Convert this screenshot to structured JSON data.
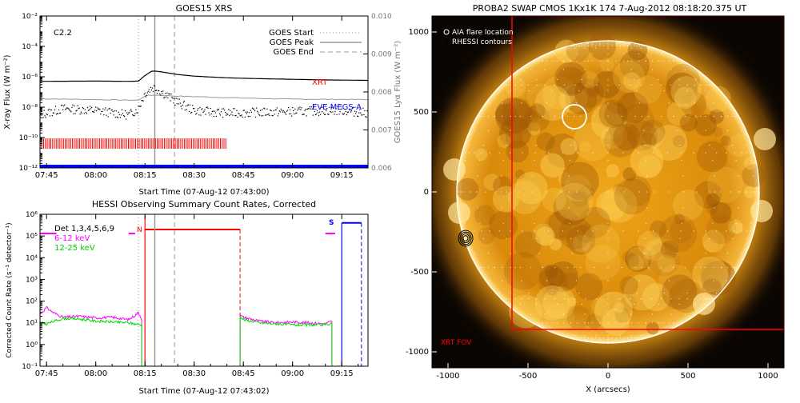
{
  "chart_data": [
    {
      "type": "line",
      "title": "GOES15 XRS",
      "xlabel": "Start Time (07-Aug-12 07:43:00)",
      "ylabel": "X-ray Flux (W m⁻²)",
      "y2label": "GOES15 Lyα Flux (W m⁻²)",
      "xlim": [
        "07:43",
        "09:23"
      ],
      "xticks": [
        "07:45",
        "08:00",
        "08:15",
        "08:30",
        "08:45",
        "09:00",
        "09:15"
      ],
      "ylim": [
        1e-12,
        0.01
      ],
      "y_scale": "log",
      "yticks": [
        "10⁻¹²",
        "10⁻¹⁰",
        "10⁻⁸",
        "10⁻⁶",
        "10⁻⁴",
        "10⁻²"
      ],
      "y2lim": [
        0.006,
        0.01
      ],
      "y2ticks": [
        "0.006",
        "0.007",
        "0.008",
        "0.009",
        "0.010"
      ],
      "class_label": "C2.2",
      "legend": [
        "GOES Start",
        "GOES Peak",
        "GOES End"
      ],
      "legend_position": "top-right",
      "markers": {
        "start": "08:13",
        "peak": "08:18",
        "end": "08:24"
      },
      "annotations": [
        {
          "text": "XRT",
          "color": "#ff0000"
        },
        {
          "text": "EVE MEGS-A",
          "color": "#0000ff"
        }
      ],
      "series": [
        {
          "name": "XRT",
          "color": "#ff0000",
          "coverage": [
            [
              "07:43",
              "08:40"
            ]
          ]
        },
        {
          "name": "EVE MEGS-A",
          "color": "#0000ff",
          "coverage": [
            [
              "07:43",
              "09:23"
            ]
          ]
        }
      ],
      "curves": {
        "long_channel": {
          "x": [
            "07:43",
            "08:00",
            "08:10",
            "08:13",
            "08:15",
            "08:17",
            "08:18",
            "08:20",
            "08:25",
            "08:30",
            "08:40",
            "08:50",
            "09:00",
            "09:10",
            "09:23"
          ],
          "y": [
            5e-07,
            5.2e-07,
            5e-07,
            5.2e-07,
            1.2e-06,
            2.3e-06,
            2.4e-06,
            2.1e-06,
            1.4e-06,
            1.1e-06,
            8.5e-07,
            7.5e-07,
            6.8e-07,
            6.2e-07,
            5.8e-07
          ]
        },
        "short_channel": {
          "x": [
            "07:43",
            "07:50",
            "08:00",
            "08:10",
            "08:13",
            "08:15",
            "08:17",
            "08:18",
            "08:20",
            "08:25",
            "08:30",
            "08:40",
            "09:00",
            "09:15",
            "09:23"
          ],
          "y": [
            3e-09,
            8e-09,
            6e-09,
            3e-09,
            8e-09,
            8e-08,
            1.8e-07,
            2e-07,
            1e-07,
            2e-08,
            6e-09,
            4e-09,
            5e-09,
            6e-09,
            4e-09
          ]
        },
        "lyman_alpha": {
          "x": [
            "07:43",
            "08:00",
            "08:13",
            "08:15",
            "08:18",
            "08:25",
            "08:45",
            "09:00",
            "09:23"
          ],
          "y": [
            0.00782,
            0.0078,
            0.00778,
            0.0079,
            0.00792,
            0.00789,
            0.00784,
            0.00781,
            0.0078
          ]
        }
      }
    },
    {
      "type": "line",
      "title": "HESSI Observing Summary Count Rates, Corrected",
      "xlabel": "Start Time (07-Aug-12 07:43:02)",
      "ylabel": "Corrected Count Rate (s⁻¹ detector⁻¹)",
      "xlim": [
        "07:43",
        "09:23"
      ],
      "xticks": [
        "07:45",
        "08:00",
        "08:15",
        "08:30",
        "08:45",
        "09:00",
        "09:15"
      ],
      "ylim": [
        0.1,
        1000000.0
      ],
      "y_scale": "log",
      "yticks": [
        "10⁻¹",
        "10⁰",
        "10¹",
        "10²",
        "10³",
        "10⁴",
        "10⁵",
        "10⁶"
      ],
      "legend": [
        {
          "text": "Det 1,3,4,5,6,9",
          "color": "#000000"
        },
        {
          "text": "6-12 keV",
          "color": "#ff00ff"
        },
        {
          "text": "12-25 keV",
          "color": "#00dd00"
        }
      ],
      "legend_position": "top-left",
      "flags": [
        {
          "text": "N",
          "color": "#ff0000"
        },
        {
          "text": "S",
          "color": "#0000ff"
        }
      ],
      "series": [
        {
          "name": "6-12 keV",
          "color": "#ff00ff",
          "segments": [
            {
              "x": [
                "07:43",
                "07:45",
                "07:47",
                "07:50",
                "07:55",
                "08:00",
                "08:05",
                "08:10",
                "08:12",
                "08:13",
                "08:14"
              ],
              "y": [
                25,
                50,
                30,
                18,
                20,
                17,
                18,
                14,
                22,
                30,
                15
              ]
            },
            {
              "x": [
                "08:44",
                "08:45",
                "08:50",
                "08:55",
                "09:00",
                "09:05",
                "09:10",
                "09:12"
              ],
              "y": [
                22,
                18,
                12,
                10,
                11,
                10,
                9,
                12
              ]
            }
          ]
        },
        {
          "name": "12-25 keV",
          "color": "#00dd00",
          "segments": [
            {
              "x": [
                "07:43",
                "07:45",
                "07:50",
                "07:55",
                "08:00",
                "08:05",
                "08:10",
                "08:14"
              ],
              "y": [
                10,
                9,
                16,
                15,
                12,
                11,
                10,
                8
              ]
            },
            {
              "x": [
                "08:44",
                "08:45",
                "08:50",
                "08:55",
                "09:00",
                "09:05",
                "09:10",
                "09:12"
              ],
              "y": [
                20,
                14,
                10,
                9,
                8,
                8,
                8,
                10
              ]
            }
          ]
        }
      ],
      "markers": {
        "start": "08:13",
        "peak": "08:18",
        "end": "08:24"
      }
    },
    {
      "type": "heatmap",
      "title": "PROBA2 SWAP CMOS 1Kx1K 174  7-Aug-2012 08:18:20.375 UT",
      "xlabel": "X (arcsecs)",
      "ylabel": "",
      "xlim": [
        -1100,
        1100
      ],
      "ylim": [
        -1100,
        1100
      ],
      "xticks": [
        -1000,
        -500,
        0,
        500,
        1000
      ],
      "yticks": [
        -1000,
        -500,
        0,
        500,
        1000
      ],
      "legend": [
        "AIA flare location",
        "RHESSI contours"
      ],
      "legend_position": "top-left",
      "xrt_fov_label": "XRT FOV",
      "solar_radius_arcsec": 945,
      "aia_flare_location": {
        "x": -210,
        "y": 470,
        "r": 75
      },
      "rhessi_source": {
        "x": -890,
        "y": -290
      },
      "xrt_fov": {
        "x": [
          -600,
          1100
        ],
        "y": [
          -860,
          1100
        ]
      }
    }
  ]
}
